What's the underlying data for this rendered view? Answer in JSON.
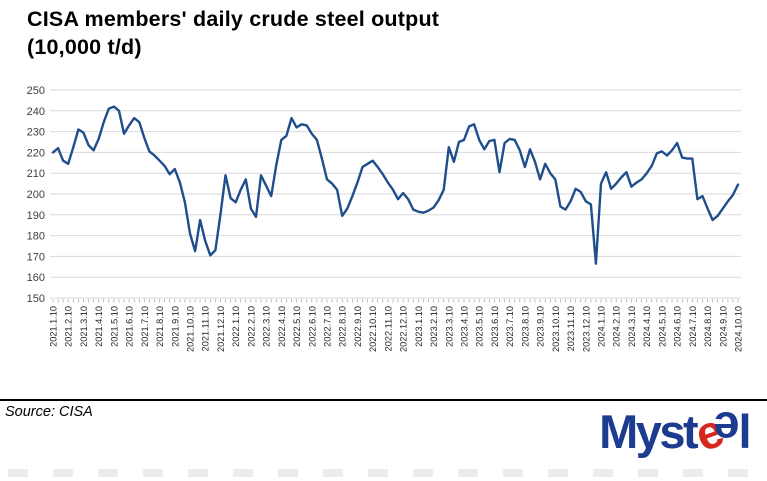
{
  "title": {
    "line1": "CISA members' daily crude steel output",
    "line2": "(10,000 t/d)"
  },
  "footer": {
    "source": "Source: CISA"
  },
  "logo": {
    "part1": "Myst",
    "e_red": "e",
    "e_blue": "e",
    "part2": "l",
    "blue": "#1e3c8f",
    "red": "#d7281f"
  },
  "chart_data": {
    "type": "line",
    "title": "CISA members' daily crude steel output (10,000 t/d)",
    "unit": "10,000 t/d",
    "interval": "10-day CISA reporting periods (three points per month)",
    "ylim": [
      150,
      250
    ],
    "y_ticks": [
      150,
      160,
      170,
      180,
      190,
      200,
      210,
      220,
      230,
      240,
      250
    ],
    "grid": "horizontal",
    "legend": "none",
    "line_color": "#1f4e8c",
    "gridline_color": "#d9d9d9",
    "x_labels": [
      "2021.1.10",
      "2021.2.10",
      "2021.3.10",
      "2021.4.10",
      "2021.5.10",
      "2021.6.10",
      "2021.7.10",
      "2021.8.10",
      "2021.9.10",
      "2021.10.10",
      "2021.11.10",
      "2021.12.10",
      "2022.1.10",
      "2022.2.10",
      "2022.3.10",
      "2022.4.10",
      "2022.5.10",
      "2022.6.10",
      "2022.7.10",
      "2022.8.10",
      "2022.9.10",
      "2022.10.10",
      "2022.11.10",
      "2022.12.10",
      "2023.1.10",
      "2023.2.10",
      "2023.3.10",
      "2023.4.10",
      "2023.5.10",
      "2023.6.10",
      "2023.7.10",
      "2023.8.10",
      "2023.9.10",
      "2023.10.10",
      "2023.11.10",
      "2023.12.10",
      "2024.1.10",
      "2024.2.10",
      "2024.3.10",
      "2024.4.10",
      "2024.5.10",
      "2024.6.10",
      "2024.7.10",
      "2024.8.10",
      "2024.9.10",
      "2024.10.10"
    ],
    "series": [
      {
        "name": "CISA members' daily crude steel output",
        "dates": [
          "2021.1.10",
          "2021.1.20",
          "2021.1.31",
          "2021.2.10",
          "2021.2.20",
          "2021.2.28",
          "2021.3.10",
          "2021.3.20",
          "2021.3.31",
          "2021.4.10",
          "2021.4.20",
          "2021.4.30",
          "2021.5.10",
          "2021.5.20",
          "2021.5.31",
          "2021.6.10",
          "2021.6.20",
          "2021.6.30",
          "2021.7.10",
          "2021.7.20",
          "2021.7.31",
          "2021.8.10",
          "2021.8.20",
          "2021.8.31",
          "2021.9.10",
          "2021.9.20",
          "2021.9.30",
          "2021.10.10",
          "2021.10.20",
          "2021.10.31",
          "2021.11.10",
          "2021.11.20",
          "2021.11.30",
          "2021.12.10",
          "2021.12.20",
          "2021.12.31",
          "2022.1.10",
          "2022.1.20",
          "2022.1.31",
          "2022.2.10",
          "2022.2.20",
          "2022.2.28",
          "2022.3.10",
          "2022.3.20",
          "2022.3.31",
          "2022.4.10",
          "2022.4.20",
          "2022.4.30",
          "2022.5.10",
          "2022.5.20",
          "2022.5.31",
          "2022.6.10",
          "2022.6.20",
          "2022.6.30",
          "2022.7.10",
          "2022.7.20",
          "2022.7.31",
          "2022.8.10",
          "2022.8.20",
          "2022.8.31",
          "2022.9.10",
          "2022.9.20",
          "2022.9.30",
          "2022.10.10",
          "2022.10.20",
          "2022.10.31",
          "2022.11.10",
          "2022.11.20",
          "2022.11.30",
          "2022.12.10",
          "2022.12.20",
          "2022.12.31",
          "2023.1.10",
          "2023.1.20",
          "2023.1.31",
          "2023.2.10",
          "2023.2.20",
          "2023.2.28",
          "2023.3.10",
          "2023.3.20",
          "2023.3.31",
          "2023.4.10",
          "2023.4.20",
          "2023.4.30",
          "2023.5.10",
          "2023.5.20",
          "2023.5.31",
          "2023.6.10",
          "2023.6.20",
          "2023.6.30",
          "2023.7.10",
          "2023.7.20",
          "2023.7.31",
          "2023.8.10",
          "2023.8.20",
          "2023.8.31",
          "2023.9.10",
          "2023.9.20",
          "2023.9.30",
          "2023.10.10",
          "2023.10.20",
          "2023.10.31",
          "2023.11.10",
          "2023.11.20",
          "2023.11.30",
          "2023.12.10",
          "2023.12.20",
          "2023.12.31",
          "2024.1.10",
          "2024.1.20",
          "2024.1.31",
          "2024.2.10",
          "2024.2.20",
          "2024.2.29",
          "2024.3.10",
          "2024.3.20",
          "2024.3.31",
          "2024.4.10",
          "2024.4.20",
          "2024.4.30",
          "2024.5.10",
          "2024.5.20",
          "2024.5.31",
          "2024.6.10",
          "2024.6.20",
          "2024.6.30",
          "2024.7.10",
          "2024.7.20",
          "2024.7.31",
          "2024.8.10",
          "2024.8.20",
          "2024.8.31",
          "2024.9.10",
          "2024.9.20",
          "2024.9.30",
          "2024.10.10"
        ],
        "values": [
          220,
          222,
          216,
          214.5,
          222.5,
          231,
          229.5,
          223.5,
          221,
          226.5,
          234.5,
          241,
          242,
          240,
          229,
          233,
          236.5,
          234.5,
          227,
          220.5,
          218.5,
          216,
          213.5,
          209.5,
          212,
          205.5,
          196,
          181,
          172.5,
          187.5,
          177.5,
          170.5,
          173,
          190,
          209,
          198,
          196,
          202,
          207,
          193,
          189,
          209,
          204,
          199,
          214,
          226,
          228,
          236.5,
          232,
          233.5,
          233,
          229,
          226,
          217,
          207,
          205,
          202,
          189.5,
          193,
          199,
          205.5,
          213,
          214.5,
          216,
          213,
          209.5,
          205.5,
          202,
          197.5,
          200.5,
          197.5,
          192.5,
          191.5,
          191,
          192,
          193.5,
          197,
          202,
          222.5,
          215.5,
          225,
          226,
          232.5,
          233.5,
          226,
          221.5,
          225.5,
          226,
          210.5,
          224.5,
          226.5,
          226,
          221,
          213,
          221.5,
          215.5,
          207,
          214.5,
          210,
          207,
          194,
          192.5,
          196.5,
          202.5,
          201,
          196.5,
          195,
          166.5,
          205,
          210.5,
          202.5,
          205,
          208,
          210.5,
          203.5,
          205.5,
          207,
          210,
          213.5,
          219.5,
          220.5,
          218.5,
          221,
          224.5,
          217.5,
          217,
          217,
          197.5,
          199,
          193,
          187.5,
          189.5,
          193,
          196.5,
          199.5,
          204.5
        ]
      }
    ]
  }
}
